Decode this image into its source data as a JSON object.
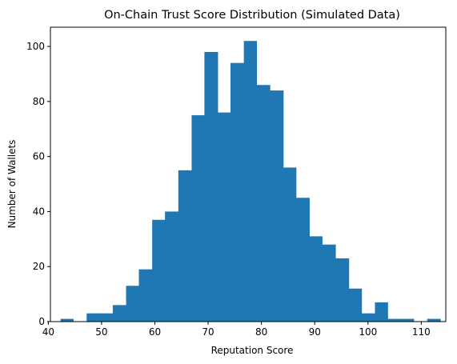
{
  "chart_data": {
    "type": "bar",
    "title": "On-Chain Trust Score Distribution (Simulated Data)",
    "xlabel": "Reputation Score",
    "ylabel": "Number of Wallets",
    "bar_color": "#1f77b4",
    "xlim": [
      40.4,
      114.6
    ],
    "ylim": [
      0,
      107
    ],
    "x_ticks": [
      40,
      50,
      60,
      70,
      80,
      90,
      100,
      110
    ],
    "y_ticks": [
      0,
      20,
      40,
      60,
      80,
      100
    ],
    "grid": false,
    "bins": {
      "edges": [
        42.3,
        44.7,
        47.2,
        49.6,
        52.1,
        54.6,
        57.0,
        59.5,
        61.9,
        64.4,
        66.9,
        69.3,
        71.8,
        74.2,
        76.7,
        79.1,
        81.6,
        84.1,
        86.5,
        89.0,
        91.4,
        93.9,
        96.4,
        98.8,
        101.3,
        103.7,
        106.2,
        108.6,
        111.1,
        113.6
      ],
      "counts": [
        1,
        0,
        3,
        3,
        6,
        13,
        19,
        37,
        40,
        55,
        75,
        98,
        76,
        94,
        102,
        86,
        84,
        56,
        45,
        31,
        28,
        23,
        12,
        3,
        7,
        1,
        1,
        0,
        1
      ]
    }
  }
}
